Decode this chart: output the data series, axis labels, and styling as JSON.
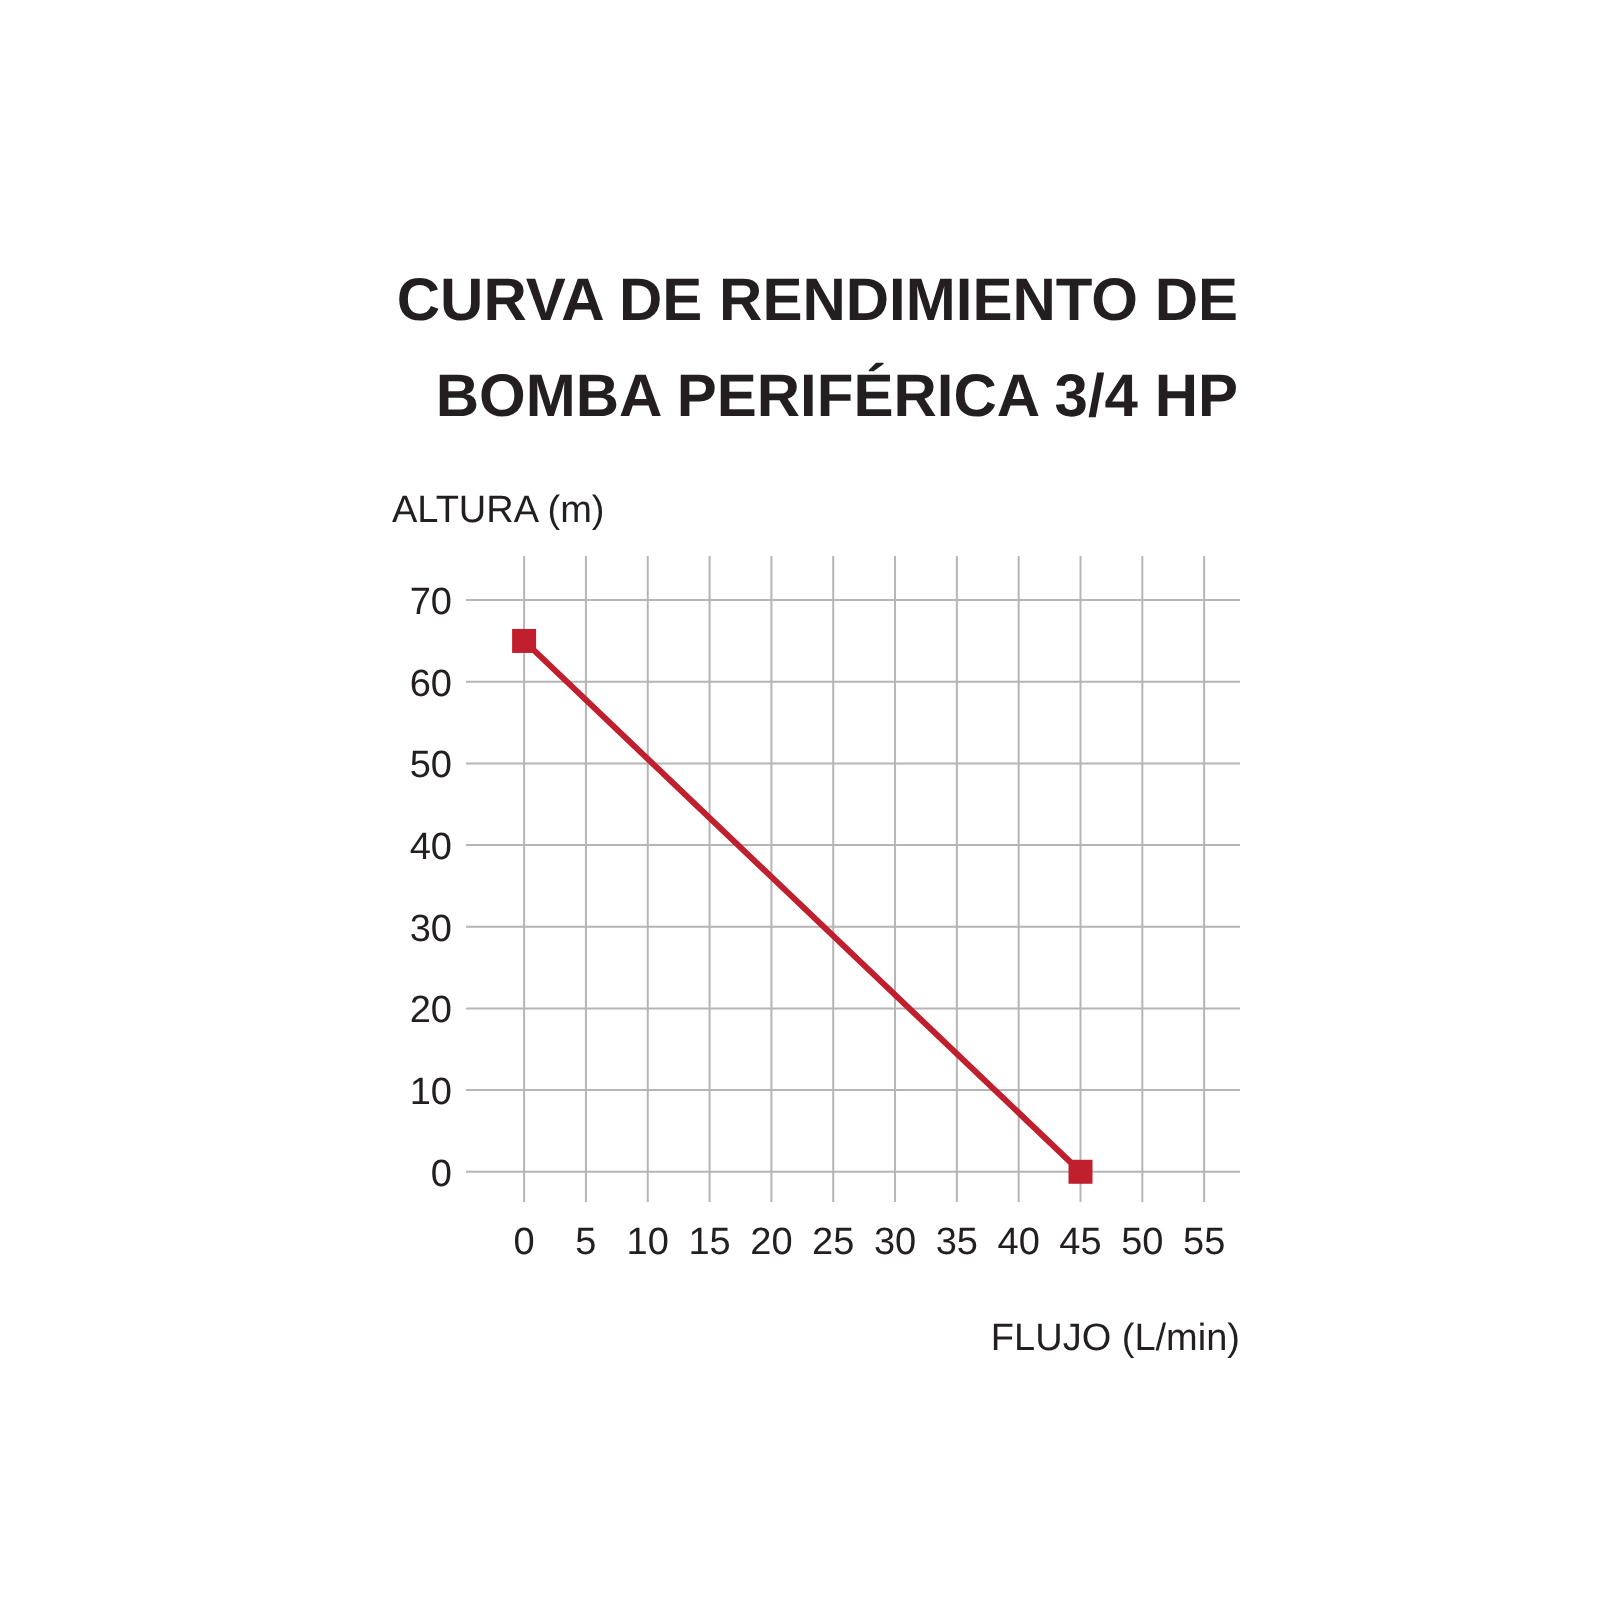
{
  "chart_data": {
    "type": "line",
    "title": "CURVA DE RENDIMIENTO DE\nBOMBA PERIFÉRICA 3/4 HP",
    "xlabel": "FLUJO (L/min)",
    "ylabel": "ALTURA (m)",
    "x": [
      0,
      45
    ],
    "series": [
      {
        "color": "#c01f2e",
        "values": [
          65,
          0
        ]
      }
    ],
    "xlim": [
      -4.7,
      57.9
    ],
    "ylim": [
      -3.7,
      75.4
    ],
    "xticks": [
      0,
      5,
      10,
      15,
      20,
      25,
      30,
      35,
      40,
      45,
      50,
      55
    ],
    "yticks": [
      0,
      10,
      20,
      30,
      40,
      50,
      60,
      70
    ],
    "grid": true,
    "marker": "square",
    "line_style": "solid"
  }
}
